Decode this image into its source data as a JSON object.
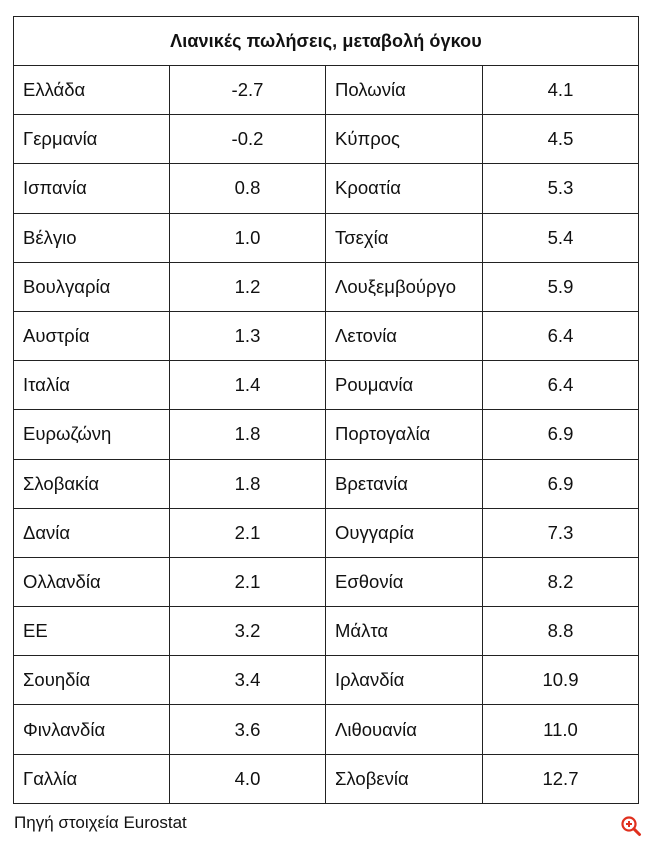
{
  "table": {
    "title": "Λιανικές πωλήσεις, μεταβολή όγκου",
    "rows": [
      {
        "left_country": "Ελλάδα",
        "left_value": "-2.7",
        "right_country": "Πολωνία",
        "right_value": "4.1"
      },
      {
        "left_country": "Γερμανία",
        "left_value": "-0.2",
        "right_country": "Κύπρος",
        "right_value": "4.5"
      },
      {
        "left_country": "Ισπανία",
        "left_value": "0.8",
        "right_country": "Κροατία",
        "right_value": "5.3"
      },
      {
        "left_country": "Βέλγιο",
        "left_value": "1.0",
        "right_country": "Τσεχία",
        "right_value": "5.4"
      },
      {
        "left_country": "Βουλγαρία",
        "left_value": "1.2",
        "right_country": "Λουξεμβούργο",
        "right_value": "5.9"
      },
      {
        "left_country": "Αυστρία",
        "left_value": "1.3",
        "right_country": "Λετονία",
        "right_value": "6.4"
      },
      {
        "left_country": "Ιταλία",
        "left_value": "1.4",
        "right_country": "Ρουμανία",
        "right_value": "6.4"
      },
      {
        "left_country": "Ευρωζώνη",
        "left_value": "1.8",
        "right_country": "Πορτογαλία",
        "right_value": "6.9"
      },
      {
        "left_country": "Σλοβακία",
        "left_value": "1.8",
        "right_country": "Βρετανία",
        "right_value": "6.9"
      },
      {
        "left_country": "Δανία",
        "left_value": "2.1",
        "right_country": "Ουγγαρία",
        "right_value": "7.3"
      },
      {
        "left_country": "Ολλανδία",
        "left_value": "2.1",
        "right_country": "Εσθονία",
        "right_value": "8.2"
      },
      {
        "left_country": "ΕΕ",
        "left_value": "3.2",
        "right_country": "Μάλτα",
        "right_value": "8.8"
      },
      {
        "left_country": "Σουηδία",
        "left_value": "3.4",
        "right_country": "Ιρλανδία",
        "right_value": "10.9"
      },
      {
        "left_country": "Φινλανδία",
        "left_value": "3.6",
        "right_country": "Λιθουανία",
        "right_value": "11.0"
      },
      {
        "left_country": "Γαλλία",
        "left_value": "4.0",
        "right_country": "Σλοβενία",
        "right_value": "12.7"
      }
    ]
  },
  "source_note": "Πηγή στοιχεία Eurostat",
  "zoom": {
    "icon": "zoom-in-icon",
    "color": "#e0301e"
  }
}
